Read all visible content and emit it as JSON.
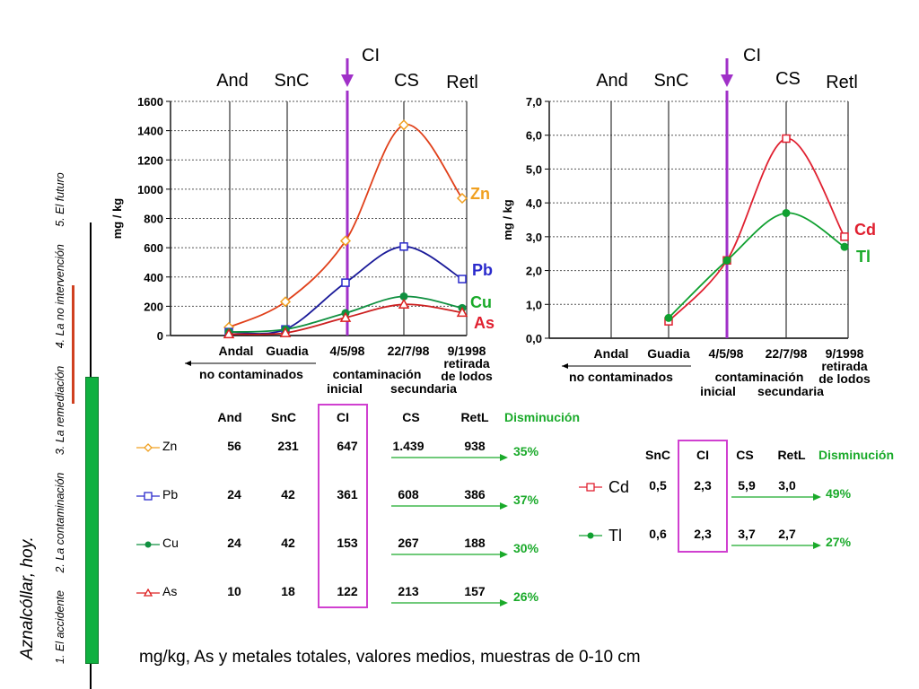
{
  "side": {
    "title": "Aznalcóllar, hoy.",
    "nav": [
      "1. El accidente",
      "2. La contaminación",
      "3. La remediación",
      "4. La no intervención",
      "5. El futuro"
    ]
  },
  "chart_data": [
    {
      "type": "line",
      "ylabel": "mg / kg",
      "ylim": [
        0,
        1600
      ],
      "yticks": [
        "0",
        "200",
        "400",
        "600",
        "800",
        "1000",
        "1200",
        "1400",
        "1600"
      ],
      "top_labels": [
        "And",
        "SnC",
        "CI",
        "CS",
        "Retl"
      ],
      "x": [
        "Andal",
        "Guadia",
        "4/5/98",
        "22/7/98",
        "9/1998"
      ],
      "x_sub": [
        "retirada",
        "de lodos"
      ],
      "group_labels": [
        "no contaminados",
        "contaminación",
        "inicial",
        "secundaria"
      ],
      "series": [
        {
          "name": "Zn",
          "color": "#e0401a",
          "marker_color": "#f0a020",
          "label_color": "#f0a020",
          "values": [
            56,
            231,
            647,
            1439,
            938
          ]
        },
        {
          "name": "Pb",
          "color": "#1a1a99",
          "marker_color": "#2a2acc",
          "label_color": "#2a2acc",
          "values": [
            24,
            42,
            361,
            608,
            386
          ]
        },
        {
          "name": "Cu",
          "color": "#109040",
          "marker_color": "#109040",
          "label_color": "#1aaa2a",
          "values": [
            24,
            42,
            153,
            267,
            188
          ]
        },
        {
          "name": "As",
          "color": "#cc2020",
          "marker_color": "#dd2020",
          "label_color": "#e02030",
          "values": [
            10,
            18,
            122,
            213,
            157
          ]
        }
      ]
    },
    {
      "type": "line",
      "ylabel": "mg / kg",
      "ylim": [
        0,
        7
      ],
      "yticks": [
        "0,0",
        "1,0",
        "2,0",
        "3,0",
        "4,0",
        "5,0",
        "6,0",
        "7,0"
      ],
      "top_labels": [
        "And",
        "SnC",
        "CI",
        "CS",
        "Retl"
      ],
      "x": [
        "Andal",
        "Guadia",
        "4/5/98",
        "22/7/98",
        "9/1998"
      ],
      "x_sub": [
        "retirada",
        "de lodos"
      ],
      "group_labels": [
        "no contaminados",
        "contaminación",
        "inicial",
        "secundaria"
      ],
      "series": [
        {
          "name": "Cd",
          "color": "#e02030",
          "marker_color": "#e02030",
          "label_color": "#e02030",
          "values": [
            null,
            0.5,
            2.3,
            5.9,
            3.0
          ]
        },
        {
          "name": "Tl",
          "color": "#10a030",
          "marker_color": "#10a030",
          "label_color": "#1aaa2a",
          "values": [
            null,
            0.6,
            2.3,
            3.7,
            2.7
          ]
        }
      ]
    }
  ],
  "table1": {
    "headers": [
      "And",
      "SnC",
      "CI",
      "CS",
      "RetL",
      "Disminución"
    ],
    "rows": [
      {
        "name": "Zn",
        "values": [
          "56",
          "231",
          "647",
          "1.439",
          "938"
        ],
        "reduction": "35%"
      },
      {
        "name": "Pb",
        "values": [
          "24",
          "42",
          "361",
          "608",
          "386"
        ],
        "reduction": "37%"
      },
      {
        "name": "Cu",
        "values": [
          "24",
          "42",
          "153",
          "267",
          "188"
        ],
        "reduction": "30%"
      },
      {
        "name": "As",
        "values": [
          "10",
          "18",
          "122",
          "213",
          "157"
        ],
        "reduction": "26%"
      }
    ]
  },
  "table2": {
    "headers": [
      "SnC",
      "CI",
      "CS",
      "RetL",
      "Disminución"
    ],
    "rows": [
      {
        "name": "Cd",
        "values": [
          "0,5",
          "2,3",
          "5,9",
          "3,0"
        ],
        "reduction": "49%"
      },
      {
        "name": "Tl",
        "values": [
          "0,6",
          "2,3",
          "3,7",
          "2,7"
        ],
        "reduction": "27%"
      }
    ]
  },
  "caption": "mg/kg,  As y metales totales, valores medios, muestras de 0-10 cm",
  "colors": {
    "purple": "#a030c8",
    "magenta_box": "#d040d0",
    "green": "#1aaa2a",
    "bar_green": "#10b040",
    "bar_red": "#d04020"
  }
}
